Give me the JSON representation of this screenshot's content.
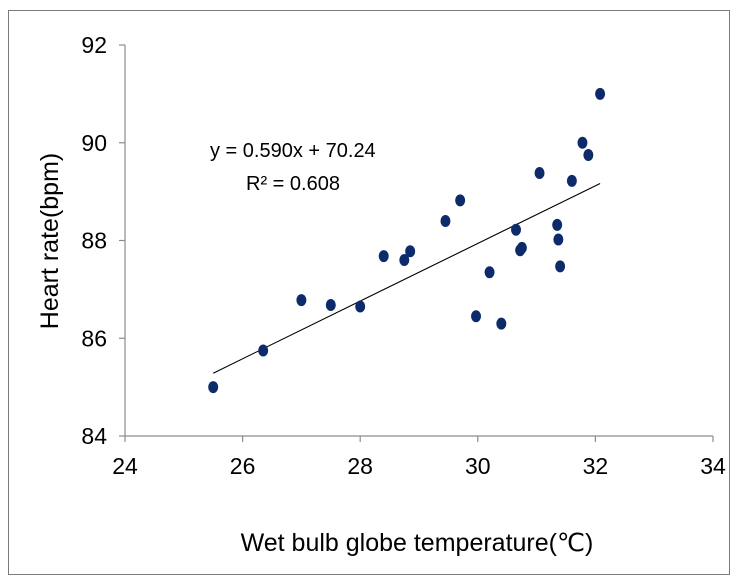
{
  "chart_data": {
    "type": "scatter",
    "xlabel": "Wet bulb globe temperature(℃)",
    "ylabel": "Heart rate(bpm)",
    "xlim": [
      24,
      34
    ],
    "ylim": [
      84,
      92
    ],
    "x_ticks": [
      "24",
      "26",
      "28",
      "30",
      "32",
      "34"
    ],
    "y_ticks": [
      "84",
      "86",
      "88",
      "90",
      "92"
    ],
    "grid": false,
    "legend": "none",
    "marker_color": "#0d2a6b",
    "series": [
      {
        "points": [
          [
            25.5,
            85.0
          ],
          [
            26.35,
            85.75
          ],
          [
            27.0,
            86.78
          ],
          [
            27.5,
            86.68
          ],
          [
            28.0,
            86.65
          ],
          [
            28.4,
            87.68
          ],
          [
            28.75,
            87.6
          ],
          [
            28.85,
            87.78
          ],
          [
            29.45,
            88.4
          ],
          [
            29.7,
            88.82
          ],
          [
            29.97,
            86.45
          ],
          [
            30.2,
            87.35
          ],
          [
            30.4,
            86.3
          ],
          [
            30.65,
            88.22
          ],
          [
            30.72,
            87.8
          ],
          [
            30.75,
            87.85
          ],
          [
            31.05,
            89.38
          ],
          [
            31.35,
            88.32
          ],
          [
            31.37,
            88.02
          ],
          [
            31.4,
            87.47
          ],
          [
            31.6,
            89.22
          ],
          [
            31.78,
            90.0
          ],
          [
            31.88,
            89.75
          ],
          [
            32.08,
            91.0
          ]
        ]
      }
    ],
    "trendline": {
      "slope": 0.59,
      "intercept": 70.24,
      "x_range": [
        25.5,
        32.08
      ],
      "equation": "y = 0.590x + 70.24",
      "r2": "R² = 0.608"
    }
  }
}
